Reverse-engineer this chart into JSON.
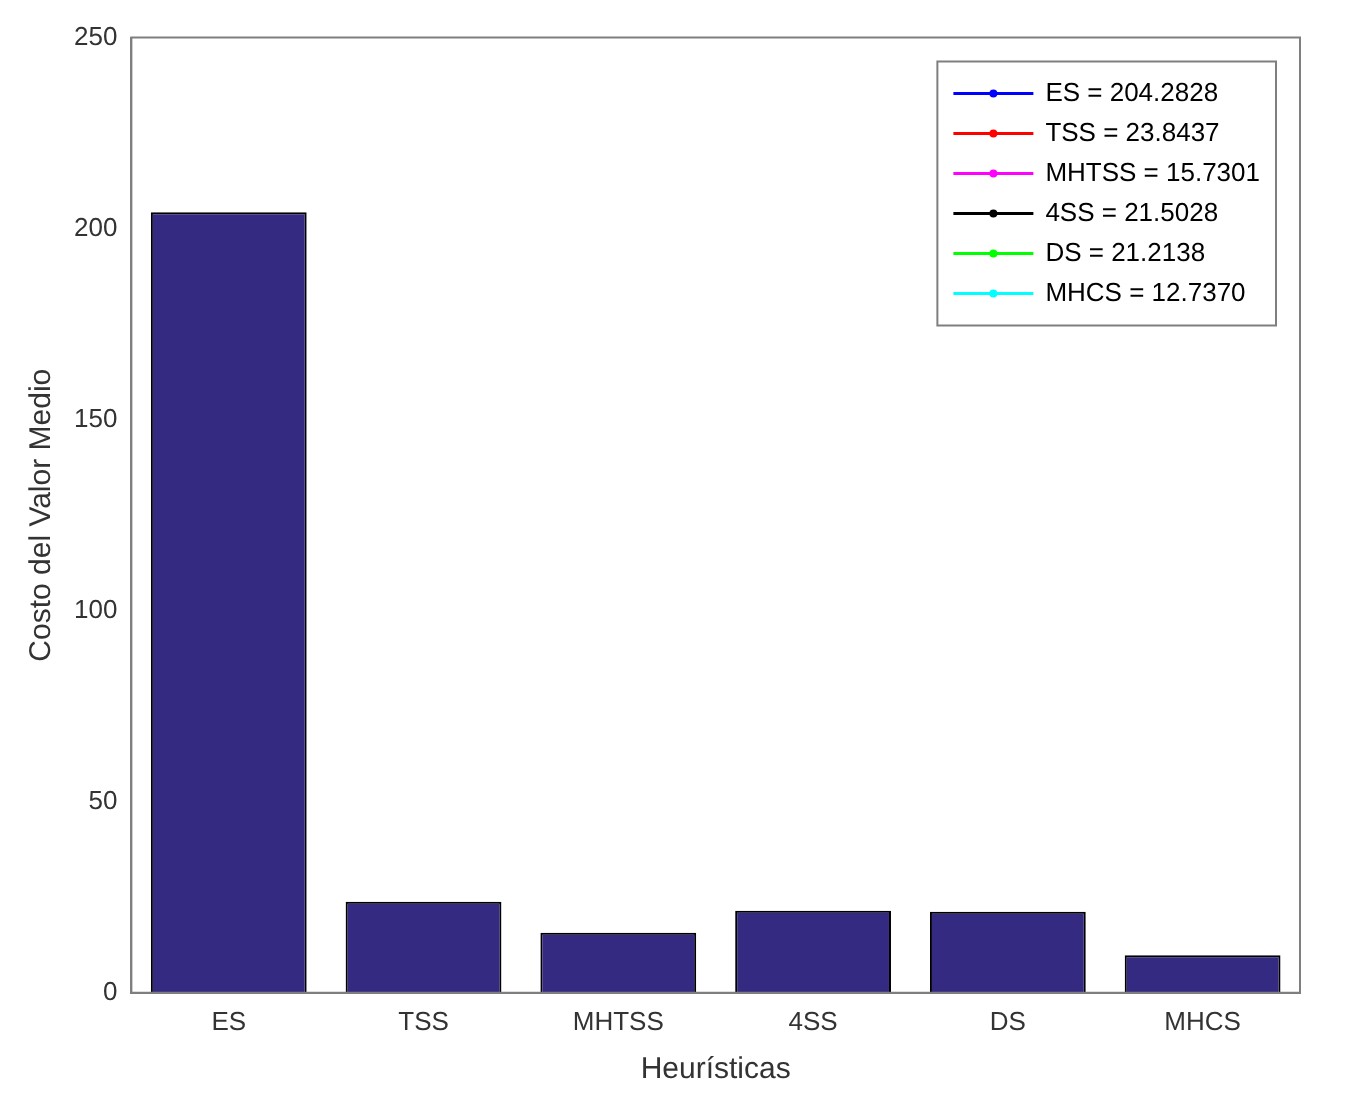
{
  "chart_data": {
    "type": "bar",
    "xlabel": "Heurísticas",
    "ylabel": "Costo del Valor Medio",
    "categories": [
      "ES",
      "TSS",
      "MHTSS",
      "4SS",
      "DS",
      "MHCS"
    ],
    "series": [
      {
        "color": "#342a82",
        "values": [
          204.3,
          23.8,
          15.7,
          21.5,
          21.2,
          9.8
        ]
      },
      {
        "type": "line",
        "name": "ES = 204.2828",
        "color": "#0000ff",
        "values": [
          null,
          null,
          null,
          null,
          null,
          null
        ]
      },
      {
        "type": "line",
        "name": "TSS = 23.8437",
        "color": "#ff0000",
        "values": [
          null,
          null,
          null,
          null,
          null,
          null
        ]
      },
      {
        "type": "line",
        "name": "MHTSS = 15.7301",
        "color": "#ff00ff",
        "values": [
          null,
          null,
          null,
          null,
          null,
          null
        ]
      },
      {
        "type": "line",
        "name": "4SS = 21.5028",
        "color": "#000000",
        "values": [
          null,
          null,
          null,
          null,
          null,
          null
        ]
      },
      {
        "type": "line",
        "name": "DS = 21.2138",
        "color": "#00ff00",
        "values": [
          null,
          null,
          null,
          null,
          null,
          null
        ]
      },
      {
        "type": "line",
        "name": "MHCS = 12.7370",
        "color": "#00ffff",
        "values": [
          null,
          null,
          null,
          null,
          null,
          null
        ]
      }
    ],
    "ylim": [
      0,
      250
    ],
    "yticks": [
      0,
      50,
      100,
      150,
      200,
      250
    ],
    "grid": false,
    "legend": "top right"
  }
}
